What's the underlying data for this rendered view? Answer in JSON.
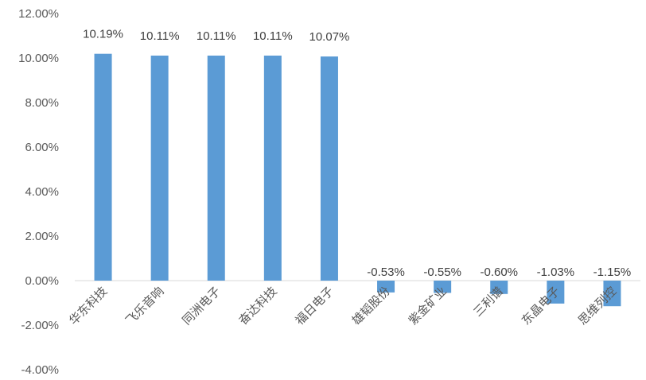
{
  "chart_data": {
    "type": "bar",
    "categories": [
      "华东科技",
      "飞乐音响",
      "同洲电子",
      "奋达科技",
      "福日电子",
      "雄韬股份",
      "紫金矿业",
      "三利谱",
      "东晶电子",
      "思维列控"
    ],
    "values": [
      10.19,
      10.11,
      10.11,
      10.11,
      10.07,
      -0.53,
      -0.55,
      -0.6,
      -1.03,
      -1.15
    ],
    "value_labels": [
      "10.19%",
      "10.11%",
      "10.11%",
      "10.11%",
      "10.07%",
      "-0.53%",
      "-0.55%",
      "-0.60%",
      "-1.03%",
      "-1.15%"
    ],
    "ytick_values": [
      12,
      10,
      8,
      6,
      4,
      2,
      0,
      -2,
      -4
    ],
    "ytick_labels": [
      "12.00%",
      "10.00%",
      "8.00%",
      "6.00%",
      "4.00%",
      "2.00%",
      "0.00%",
      "-2.00%",
      "-4.00%"
    ],
    "ylim": [
      -4,
      12
    ],
    "bar_color": "#5B9BD5",
    "axis_color": "#D9D9D9",
    "grid": false,
    "legend": "none",
    "title": "",
    "xlabel": "",
    "ylabel": ""
  }
}
